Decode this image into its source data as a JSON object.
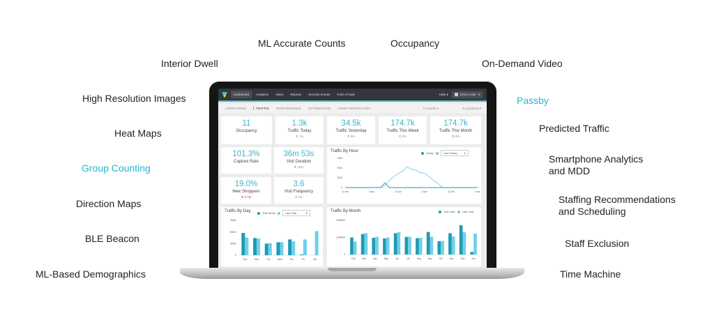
{
  "features": {
    "ml_accurate_counts": "ML Accurate Counts",
    "occupancy": "Occupancy",
    "interior_dwell": "Interior Dwell",
    "on_demand_video": "On-Demand Video",
    "high_resolution_images": "High Resolution Images",
    "passby": "Passby",
    "heat_maps": "Heat Maps",
    "predicted_traffic": "Predicted Traffic",
    "group_counting": "Group Counting",
    "smartphone_analytics_1": "Smartphone Analytics",
    "smartphone_analytics_2": "and MDD",
    "direction_maps": "Direction Maps",
    "staffing_1": "Staffing Recommendations",
    "staffing_2": "and Scheduling",
    "ble_beacon": "BLE Beacon",
    "staff_exclusion": "Staff Exclusion",
    "ml_demographics": "ML-Based Demographics",
    "time_machine": "Time Machine"
  },
  "colors": {
    "accent": "#2ab3cf",
    "this_period": "#1f9bb3",
    "last_period": "#6fd0ea"
  },
  "nav": {
    "items": [
      "Dashboard",
      "Analytics",
      "Video",
      "Reports",
      "Security Events",
      "Point of Sale"
    ],
    "help": "Help",
    "user": "Demo User"
  },
  "subnav": {
    "tabs": [
      "OPERATIONS",
      "TRAFFIC",
      "PERFORMANCE",
      "OPTIMIZATION",
      "ASSET PROTECTION"
    ],
    "period": "3 months",
    "locations": "3 Locations"
  },
  "kpis": [
    {
      "value": "11",
      "label": "Occupancy",
      "change": "-"
    },
    {
      "value": "1.3k",
      "label": "Traffic Today",
      "change": "1%"
    },
    {
      "value": "34.5k",
      "label": "Traffic Yesterday",
      "change": "9%"
    },
    {
      "value": "174.7k",
      "label": "Traffic This Week",
      "change": "8%"
    },
    {
      "value": "174.7k",
      "label": "Traffic This Month",
      "change": "8%"
    },
    {
      "value": "101.3%",
      "label": "Capture Rate",
      "change": "-"
    },
    {
      "value": "36m 53s",
      "label": "Visit Duration",
      "change": "16%"
    },
    {
      "value": "19.0%",
      "label": "New Shoppers",
      "change": "0.7pt"
    },
    {
      "value": "3.6",
      "label": "Visit Frequency",
      "change": "3%"
    }
  ],
  "chart_data": [
    {
      "type": "line",
      "title": "Traffic By Hour",
      "legend": [
        "Today"
      ],
      "compare": "Last Friday",
      "ylim": [
        0,
        7500
      ],
      "yticks": [
        "7500",
        "5000",
        "2500",
        "0"
      ],
      "xticks": [
        "12 am",
        "6 am",
        "12 pm",
        "6 pm",
        "12 am",
        "6 am"
      ],
      "x": [
        0,
        6,
        7,
        8,
        9,
        10,
        11,
        12,
        13,
        14,
        15,
        16,
        17,
        18,
        19,
        20,
        21,
        22,
        24,
        30
      ],
      "series": [
        {
          "name": "Today",
          "values": [
            0,
            0,
            0,
            0,
            1200,
            0,
            0,
            0,
            0,
            0,
            0,
            0,
            0,
            0,
            0,
            0,
            0,
            0,
            0,
            0
          ]
        },
        {
          "name": "Last Friday",
          "values": [
            0,
            0,
            0,
            0,
            600,
            1800,
            2800,
            3600,
            4200,
            5300,
            4700,
            4500,
            3800,
            3700,
            2800,
            1800,
            1100,
            0,
            0,
            0
          ]
        }
      ]
    },
    {
      "type": "bar",
      "title": "Traffic By Day",
      "legend": [
        "This Week"
      ],
      "compare": "Last Year",
      "ylim": [
        0,
        75000
      ],
      "yticks": [
        "75000",
        "50000",
        "25000",
        "0"
      ],
      "categories": [
        "Sun",
        "Mon",
        "Tue",
        "Wed",
        "Thu",
        "Fri",
        "Sat"
      ],
      "series": [
        {
          "name": "This Week",
          "values": [
            48000,
            37000,
            25000,
            28000,
            34000,
            1500,
            0
          ]
        },
        {
          "name": "Last Year",
          "values": [
            38000,
            36000,
            26000,
            28000,
            30000,
            34000,
            52000
          ]
        }
      ]
    },
    {
      "type": "bar",
      "title": "Traffic By Month",
      "legend": [
        "This Year",
        "Last Year"
      ],
      "ylim": [
        0,
        2000000
      ],
      "yticks": [
        "2000000",
        "1000000",
        "0"
      ],
      "categories": [
        "Feb",
        "Mar",
        "Apr",
        "May",
        "Jun",
        "Jul",
        "Aug",
        "Sep",
        "Oct",
        "Nov",
        "Dec",
        "Jan"
      ],
      "series": [
        {
          "name": "This Year",
          "values": [
            1000000,
            1200000,
            980000,
            940000,
            1250000,
            1030000,
            960000,
            1320000,
            780000,
            1250000,
            1720000,
            150000
          ]
        },
        {
          "name": "Last Year",
          "values": [
            760000,
            1250000,
            1040000,
            1000000,
            1310000,
            1040000,
            980000,
            1040000,
            790000,
            1060000,
            1300000,
            1230000
          ]
        }
      ]
    }
  ]
}
